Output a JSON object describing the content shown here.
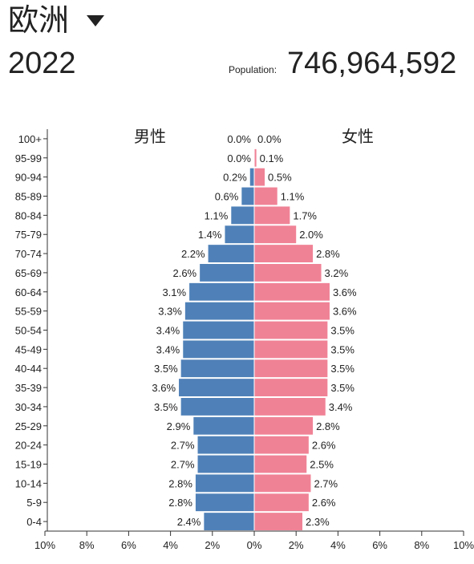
{
  "header": {
    "region": "欧洲",
    "year": "2022",
    "population_label": "Population:",
    "population_value": "746,964,592"
  },
  "colors": {
    "male": "#4f81b8",
    "female": "#f08296",
    "axis": "#333333",
    "text": "#222222"
  },
  "icons": {
    "region_dropdown": "caret-down-icon"
  },
  "chart_data": {
    "type": "bar",
    "orientation": "horizontal-pyramid",
    "categories": [
      "100+",
      "95-99",
      "90-94",
      "85-89",
      "80-84",
      "75-79",
      "70-74",
      "65-69",
      "60-64",
      "55-59",
      "50-54",
      "45-49",
      "40-44",
      "35-39",
      "30-34",
      "25-29",
      "20-24",
      "15-19",
      "10-14",
      "5-9",
      "0-4"
    ],
    "series": [
      {
        "name": "男性",
        "values": [
          0.0,
          0.0,
          0.2,
          0.6,
          1.1,
          1.4,
          2.2,
          2.6,
          3.1,
          3.3,
          3.4,
          3.4,
          3.5,
          3.6,
          3.5,
          2.9,
          2.7,
          2.7,
          2.8,
          2.8,
          2.4
        ],
        "labels": [
          "0.0%",
          "0.0%",
          "0.2%",
          "0.6%",
          "1.1%",
          "1.4%",
          "2.2%",
          "2.6%",
          "3.1%",
          "3.3%",
          "3.4%",
          "3.4%",
          "3.5%",
          "3.6%",
          "3.5%",
          "2.9%",
          "2.7%",
          "2.7%",
          "2.8%",
          "2.8%",
          "2.4%"
        ]
      },
      {
        "name": "女性",
        "values": [
          0.0,
          0.1,
          0.5,
          1.1,
          1.7,
          2.0,
          2.8,
          3.2,
          3.6,
          3.6,
          3.5,
          3.5,
          3.5,
          3.5,
          3.4,
          2.8,
          2.6,
          2.5,
          2.7,
          2.6,
          2.3
        ],
        "labels": [
          "0.0%",
          "0.1%",
          "0.5%",
          "1.1%",
          "1.7%",
          "2.0%",
          "2.8%",
          "3.2%",
          "3.6%",
          "3.6%",
          "3.5%",
          "3.5%",
          "3.5%",
          "3.5%",
          "3.4%",
          "2.8%",
          "2.6%",
          "2.5%",
          "2.7%",
          "2.6%",
          "2.3%"
        ]
      }
    ],
    "xlim": [
      -10,
      10
    ],
    "x_ticks": [
      -10,
      -8,
      -6,
      -4,
      -2,
      0,
      2,
      4,
      6,
      8,
      10
    ],
    "x_tick_labels": [
      "10%",
      "8%",
      "6%",
      "4%",
      "2%",
      "0%",
      "2%",
      "4%",
      "6%",
      "8%",
      "10%"
    ],
    "legend": "inline-top"
  }
}
